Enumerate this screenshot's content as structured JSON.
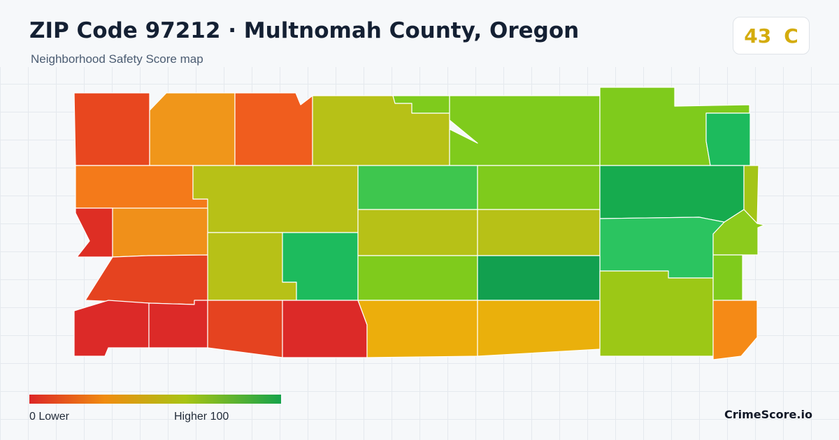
{
  "header": {
    "title": "ZIP Code 97212 · Multnomah County, Oregon",
    "subtitle": "Neighborhood Safety Score map"
  },
  "score": {
    "value": "43",
    "grade": "C"
  },
  "legend": {
    "min_label": "0  Lower",
    "max_label": "Higher  100",
    "colors": [
      "#dc2626",
      "#f08c10",
      "#a8c414",
      "#16a34a"
    ]
  },
  "brand": "CrimeScore.io",
  "map": {
    "regions": [
      {
        "name": "region-nw-1",
        "color": "#e8471f"
      },
      {
        "name": "region-nw-2",
        "color": "#f0961a"
      },
      {
        "name": "region-nw-3",
        "color": "#f05d1e"
      },
      {
        "name": "region-n-1",
        "color": "#b7c117"
      },
      {
        "name": "region-n-2",
        "color": "#7fcb1c"
      },
      {
        "name": "region-n-3",
        "color": "#7fcb1c"
      },
      {
        "name": "region-ne-1",
        "color": "#7fcb1c"
      },
      {
        "name": "region-ne-2",
        "color": "#1dbb5d"
      },
      {
        "name": "region-w-1",
        "color": "#f47a1a"
      },
      {
        "name": "region-w-2",
        "color": "#b7c117"
      },
      {
        "name": "region-c-1",
        "color": "#3ec64e"
      },
      {
        "name": "region-c-2",
        "color": "#7fcb1c"
      },
      {
        "name": "region-e-1",
        "color": "#16ab4e"
      },
      {
        "name": "region-e-2",
        "color": "#a4c517"
      },
      {
        "name": "region-sw-1",
        "color": "#de2e24"
      },
      {
        "name": "region-sw-2",
        "color": "#f0901a"
      },
      {
        "name": "region-s-1",
        "color": "#b7c117"
      },
      {
        "name": "region-s-2",
        "color": "#1dbb5d"
      },
      {
        "name": "region-c-3",
        "color": "#b7c117"
      },
      {
        "name": "region-c-4",
        "color": "#b7c117"
      },
      {
        "name": "region-e-3",
        "color": "#2bc460"
      },
      {
        "name": "region-e-4",
        "color": "#8ccb1c"
      },
      {
        "name": "region-sw-3",
        "color": "#e54320"
      },
      {
        "name": "region-c-5",
        "color": "#7fcb1c"
      },
      {
        "name": "region-c-6",
        "color": "#12a04f"
      },
      {
        "name": "region-e-5",
        "color": "#9cc816"
      },
      {
        "name": "region-e-6",
        "color": "#7fcb1c"
      },
      {
        "name": "region-sw-4",
        "color": "#dc2a28"
      },
      {
        "name": "region-s-3",
        "color": "#dc2a28"
      },
      {
        "name": "region-s-4",
        "color": "#e54320"
      },
      {
        "name": "region-s-5",
        "color": "#dc2a28"
      },
      {
        "name": "region-s-6",
        "color": "#ecae0c"
      },
      {
        "name": "region-s-7",
        "color": "#eab00c"
      },
      {
        "name": "region-se-1",
        "color": "#f58a16"
      }
    ]
  }
}
